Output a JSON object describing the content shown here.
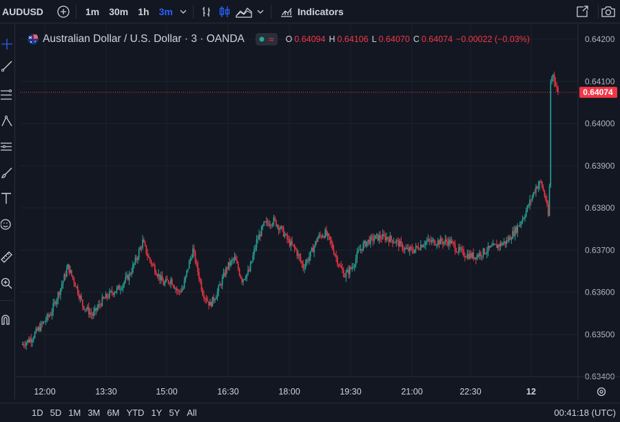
{
  "toolbar": {
    "symbol": "AUDUSD",
    "intervals": [
      "1m",
      "30m",
      "1h",
      "3m"
    ],
    "active_interval": "3m",
    "indicators_label": "Indicators"
  },
  "legend": {
    "title": "Australian Dollar / U.S. Dollar · 3 · OANDA",
    "o_label": "O",
    "o": "0.64094",
    "h_label": "H",
    "h": "0.64106",
    "l_label": "L",
    "l": "0.64070",
    "c_label": "C",
    "c": "0.64074",
    "change": "−0.00022 (−0.03%)",
    "status_icon": "≈"
  },
  "colors": {
    "up": "#26a69a",
    "down": "#f23645",
    "bg": "#131722",
    "grid": "#1e222d",
    "accent": "#2962ff"
  },
  "bottom": {
    "ranges": [
      "1D",
      "5D",
      "1M",
      "3M",
      "6M",
      "YTD",
      "1Y",
      "5Y",
      "All"
    ],
    "clock": "00:41:18 (UTC)"
  },
  "chart_data": {
    "type": "candlestick",
    "y_ticks": [
      "0.64200",
      "0.64100",
      "0.64000",
      "0.63900",
      "0.63800",
      "0.63700",
      "0.63600",
      "0.63500",
      "0.63400"
    ],
    "ylim": [
      0.6338,
      0.6421
    ],
    "x_ticks": [
      "12:00",
      "13:30",
      "15:00",
      "16:30",
      "18:00",
      "19:30",
      "21:00",
      "22:30",
      "12"
    ],
    "last_price": "0.64074",
    "close_path": [
      [
        0,
        0.63475
      ],
      [
        8,
        0.6349
      ],
      [
        16,
        0.6352
      ],
      [
        24,
        0.6355
      ],
      [
        32,
        0.6361
      ],
      [
        38,
        0.6366
      ],
      [
        44,
        0.6362
      ],
      [
        50,
        0.6357
      ],
      [
        58,
        0.63545
      ],
      [
        66,
        0.6358
      ],
      [
        74,
        0.636
      ],
      [
        80,
        0.6361
      ],
      [
        88,
        0.6364
      ],
      [
        94,
        0.6368
      ],
      [
        99,
        0.6372
      ],
      [
        104,
        0.6368
      ],
      [
        110,
        0.6365
      ],
      [
        116,
        0.6362
      ],
      [
        122,
        0.6363
      ],
      [
        128,
        0.636
      ],
      [
        132,
        0.6361
      ],
      [
        136,
        0.6366
      ],
      [
        140,
        0.637
      ],
      [
        144,
        0.6365
      ],
      [
        148,
        0.636
      ],
      [
        154,
        0.6357
      ],
      [
        160,
        0.636
      ],
      [
        168,
        0.6366
      ],
      [
        174,
        0.6368
      ],
      [
        180,
        0.6363
      ],
      [
        186,
        0.6365
      ],
      [
        192,
        0.6372
      ],
      [
        198,
        0.6376
      ],
      [
        206,
        0.6377
      ],
      [
        212,
        0.6375
      ],
      [
        218,
        0.6372
      ],
      [
        224,
        0.637
      ],
      [
        230,
        0.6366
      ],
      [
        236,
        0.6369
      ],
      [
        242,
        0.6373
      ],
      [
        248,
        0.6374
      ],
      [
        252,
        0.6372
      ],
      [
        256,
        0.6369
      ],
      [
        260,
        0.6366
      ],
      [
        264,
        0.6364
      ],
      [
        270,
        0.6366
      ],
      [
        276,
        0.637
      ],
      [
        282,
        0.6372
      ],
      [
        290,
        0.6373
      ],
      [
        298,
        0.6373
      ],
      [
        306,
        0.6372
      ],
      [
        314,
        0.637
      ],
      [
        320,
        0.637
      ],
      [
        330,
        0.6372
      ],
      [
        340,
        0.6372
      ],
      [
        350,
        0.6372
      ],
      [
        356,
        0.637
      ],
      [
        362,
        0.6369
      ],
      [
        370,
        0.63685
      ],
      [
        380,
        0.637
      ],
      [
        388,
        0.6371
      ],
      [
        396,
        0.6372
      ],
      [
        404,
        0.6375
      ],
      [
        410,
        0.6378
      ],
      [
        416,
        0.6382
      ],
      [
        420,
        0.6385
      ],
      [
        424,
        0.6386
      ],
      [
        428,
        0.6382
      ],
      [
        430,
        0.6378
      ],
      [
        431,
        0.6385
      ],
      [
        432,
        0.641
      ],
      [
        434,
        0.6412
      ],
      [
        436,
        0.6409
      ],
      [
        438,
        0.64074
      ]
    ]
  }
}
